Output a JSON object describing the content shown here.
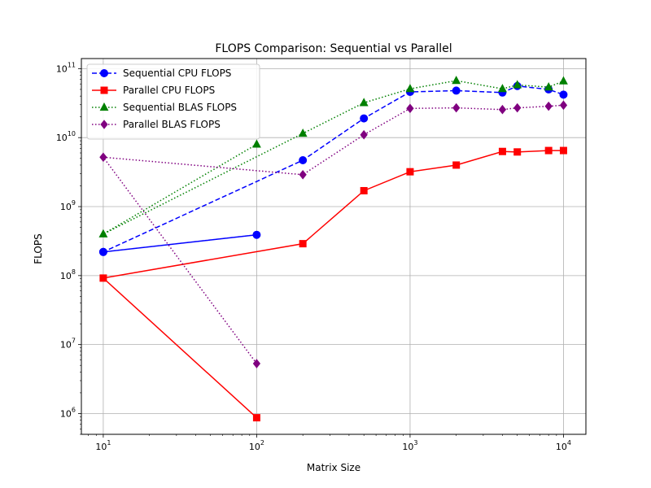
{
  "chart_data": {
    "type": "line",
    "title": "FLOPS Comparison: Sequential vs Parallel",
    "xlabel": "Matrix Size",
    "ylabel": "FLOPS",
    "xscale": "log",
    "yscale": "log",
    "xlim": [
      7.2,
      14000
    ],
    "ylim": [
      500000,
      140000000000
    ],
    "grid": true,
    "legend_position": "top-left",
    "x_ticks": [
      {
        "value": 10,
        "base": "10",
        "exp": "1"
      },
      {
        "value": 100,
        "base": "10",
        "exp": "2"
      },
      {
        "value": 1000,
        "base": "10",
        "exp": "3"
      },
      {
        "value": 10000,
        "base": "10",
        "exp": "4"
      }
    ],
    "y_ticks": [
      {
        "value": 1000000,
        "base": "10",
        "exp": "6"
      },
      {
        "value": 10000000,
        "base": "10",
        "exp": "7"
      },
      {
        "value": 100000000,
        "base": "10",
        "exp": "8"
      },
      {
        "value": 1000000000,
        "base": "10",
        "exp": "9"
      },
      {
        "value": 10000000000,
        "base": "10",
        "exp": "10"
      },
      {
        "value": 100000000000,
        "base": "10",
        "exp": "11"
      }
    ],
    "series": [
      {
        "name": "Sequential CPU FLOPS",
        "color": "#0000ff",
        "line_style": "dashed",
        "marker": "circle",
        "x": [
          10,
          100,
          10,
          200,
          500,
          1000,
          2000,
          4000,
          5000,
          8000,
          10000
        ],
        "y": [
          220000000,
          390000000,
          220000000,
          4700000000,
          19000000000,
          46000000000,
          48000000000,
          45000000000,
          56000000000,
          50000000000,
          42000000000
        ]
      },
      {
        "name": "Parallel CPU FLOPS",
        "color": "#ff0000",
        "line_style": "solid",
        "marker": "square",
        "x": [
          100,
          10,
          200,
          500,
          1000,
          2000,
          4000,
          5000,
          8000,
          10000
        ],
        "y": [
          870000,
          92000000,
          290000000,
          1700000000,
          3200000000,
          4000000000,
          6300000000,
          6200000000,
          6500000000,
          6500000000
        ]
      },
      {
        "name": "Sequential BLAS FLOPS",
        "color": "#008000",
        "line_style": "dotted",
        "marker": "triangle",
        "x": [
          100,
          10,
          200,
          500,
          1000,
          2000,
          4000,
          5000,
          8000,
          10000
        ],
        "y": [
          8000000000,
          400000000,
          11500000000,
          32000000000,
          51000000000,
          67000000000,
          51000000000,
          58000000000,
          54000000000,
          66000000000
        ]
      },
      {
        "name": "Parallel BLAS FLOPS",
        "color": "#800080",
        "line_style": "dotted",
        "marker": "diamond",
        "x": [
          100,
          10,
          200,
          500,
          1000,
          2000,
          4000,
          5000,
          8000,
          10000
        ],
        "y": [
          5300000,
          5200000000,
          2900000000,
          11000000000,
          26500000000,
          27000000000,
          25500000000,
          27000000000,
          28500000000,
          29500000000
        ]
      }
    ]
  }
}
